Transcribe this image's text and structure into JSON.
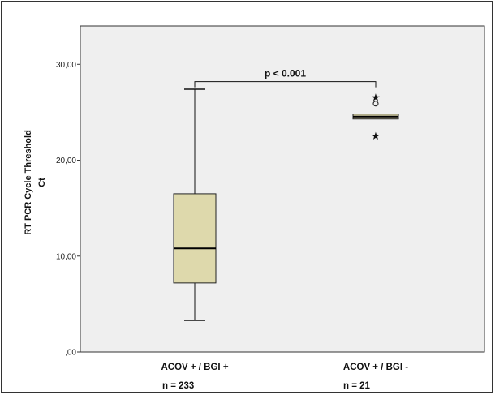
{
  "chart_data": {
    "type": "box",
    "ylabel": "RT PCR Cycle Threshold",
    "ylabel2": "Ct",
    "ylim": [
      0,
      34
    ],
    "yticks": [
      {
        "value": 0,
        "label": ",00"
      },
      {
        "value": 10,
        "label": "10,00"
      },
      {
        "value": 20,
        "label": "20,00"
      },
      {
        "value": 30,
        "label": "30,00"
      }
    ],
    "grid": false,
    "background": "#efefef",
    "box_fill": "#ded9ac",
    "categories": [
      {
        "label": "ACOV + / BGI +",
        "n_label": "n = 233"
      },
      {
        "label": "ACOV + / BGI -",
        "n_label": "n = 21"
      }
    ],
    "boxes": [
      {
        "min": 3.3,
        "q1": 7.2,
        "median": 10.8,
        "q3": 16.5,
        "max": 27.4,
        "outliers_circle": [],
        "outliers_star": []
      },
      {
        "min": 24.3,
        "q1": 24.3,
        "median": 24.55,
        "q3": 24.8,
        "max": 24.8,
        "outliers_circle": [
          25.9
        ],
        "outliers_star": [
          26.6,
          22.6
        ]
      }
    ],
    "annotation": {
      "text": "p < 0.001",
      "y": 28.2,
      "from": 0,
      "to": 1
    }
  }
}
